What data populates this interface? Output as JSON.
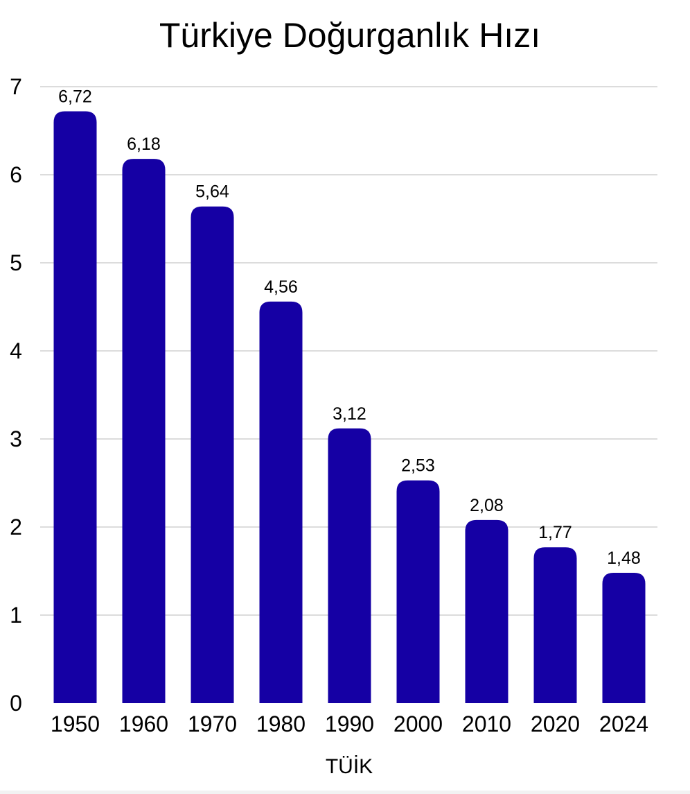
{
  "chart_data": {
    "type": "bar",
    "title": "Türkiye Doğurganlık Hızı",
    "xlabel": "TÜİK",
    "ylabel": "",
    "categories": [
      "1950",
      "1960",
      "1970",
      "1980",
      "1990",
      "2000",
      "2010",
      "2020",
      "2024"
    ],
    "values": [
      6.72,
      6.18,
      5.64,
      4.56,
      3.12,
      2.53,
      2.08,
      1.77,
      1.48
    ],
    "value_labels": [
      "6,72",
      "6,18",
      "5,64",
      "4,56",
      "3,12",
      "2,53",
      "2,08",
      "1,77",
      "1,48"
    ],
    "ylim": [
      0,
      7
    ],
    "yticks": [
      "0",
      "1",
      "2",
      "3",
      "4",
      "5",
      "6",
      "7"
    ],
    "grid": true,
    "legend": "none",
    "bar_color": "#1500A4"
  }
}
